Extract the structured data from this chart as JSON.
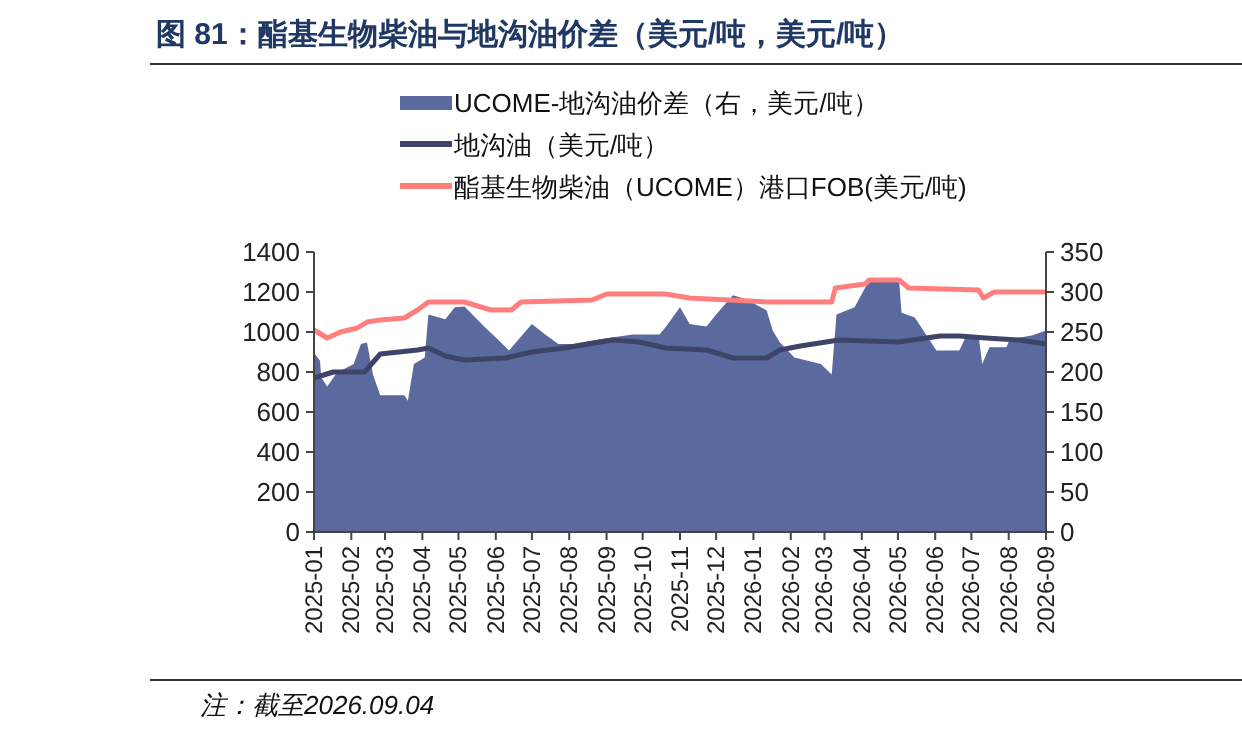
{
  "chart_data": {
    "type": "line",
    "title": "图 81：酯基生物柴油与地沟油价差（美元/吨，美元/吨）",
    "legend": "top",
    "grid": false,
    "xlim": [
      "2025-01-01",
      "2026-09-01"
    ],
    "xticks": [
      "2025-01",
      "2025-02",
      "2025-03",
      "2025-04",
      "2025-05",
      "2025-06",
      "2025-07",
      "2025-08",
      "2025-09",
      "2025-10",
      "2025-11",
      "2025-12",
      "2026-01",
      "2026-02",
      "2026-03",
      "2026-04",
      "2026-05",
      "2026-06",
      "2026-07",
      "2026-08",
      "2026-09"
    ],
    "ylim": [
      0,
      1400
    ],
    "yticks": [
      0,
      200,
      400,
      600,
      800,
      1000,
      1200,
      1400
    ],
    "y2lim": [
      0,
      350
    ],
    "y2ticks": [
      0,
      50,
      100,
      150,
      200,
      250,
      300,
      350
    ],
    "series": [
      {
        "name": "UCOME-地沟油价差（右，美元/吨）",
        "type": "area",
        "axis": "y2",
        "color": "#5b6a9e",
        "x": [
          "2025-01-01",
          "2025-01-06",
          "2025-01-07",
          "2025-01-12",
          "2025-01-20",
          "2025-02-03",
          "2025-02-09",
          "2025-02-14",
          "2025-02-19",
          "2025-02-25",
          "2025-03-17",
          "2025-03-20",
          "2025-03-25",
          "2025-04-03",
          "2025-04-06",
          "2025-04-20",
          "2025-04-28",
          "2025-05-06",
          "2025-05-23",
          "2025-06-01",
          "2025-06-12",
          "2025-06-20",
          "2025-07-01",
          "2025-07-12",
          "2025-07-23",
          "2025-08-04",
          "2025-08-26",
          "2025-09-23",
          "2025-10-15",
          "2025-10-20",
          "2025-11-01",
          "2025-11-09",
          "2025-11-23",
          "2025-12-01",
          "2025-12-15",
          "2025-12-26",
          "2026-01-12",
          "2026-01-17",
          "2026-01-23",
          "2026-02-04",
          "2026-02-26",
          "2026-03-07",
          "2026-03-11",
          "2026-03-26",
          "2026-04-07",
          "2026-05-02",
          "2026-05-04",
          "2026-05-15",
          "2026-06-02",
          "2026-06-21",
          "2026-06-27",
          "2026-07-07",
          "2026-07-10",
          "2026-07-16",
          "2026-07-30",
          "2026-08-02",
          "2026-08-21",
          "2026-09-01"
        ],
        "values": [
          224,
          214,
          193,
          182,
          199,
          210,
          235,
          237,
          197,
          171,
          171,
          164,
          210,
          218,
          272,
          266,
          281,
          282,
          256,
          243,
          227,
          241,
          260,
          247,
          235,
          235,
          241,
          247,
          247,
          256,
          281,
          260,
          257,
          272,
          296,
          291,
          277,
          252,
          237,
          218,
          210,
          197,
          272,
          281,
          314,
          314,
          274,
          268,
          227,
          227,
          246,
          246,
          210,
          231,
          231,
          241,
          246,
          252
        ]
      },
      {
        "name": "地沟油（美元/吨）",
        "color": "#3d4468",
        "x": [
          "2025-01-01",
          "2025-01-17",
          "2025-02-12",
          "2025-02-25",
          "2025-03-28",
          "2025-04-06",
          "2025-04-20",
          "2025-05-06",
          "2025-06-09",
          "2025-07-01",
          "2025-07-28",
          "2025-09-06",
          "2025-09-28",
          "2025-10-20",
          "2025-11-23",
          "2025-12-15",
          "2026-01-12",
          "2026-01-23",
          "2026-02-09",
          "2026-03-13",
          "2026-05-02",
          "2026-06-05",
          "2026-06-21",
          "2026-07-13",
          "2026-08-10",
          "2026-09-01"
        ],
        "values": [
          770,
          800,
          800,
          890,
          910,
          920,
          880,
          860,
          870,
          900,
          920,
          960,
          950,
          920,
          910,
          870,
          870,
          910,
          930,
          960,
          950,
          980,
          980,
          970,
          960,
          940
        ]
      },
      {
        "name": "酯基生物柴油（UCOME）港口FOB(美元/吨)",
        "color": "#ff7f7f",
        "x": [
          "2025-01-01",
          "2025-01-12",
          "2025-01-23",
          "2025-02-06",
          "2025-02-14",
          "2025-02-25",
          "2025-03-17",
          "2025-03-28",
          "2025-04-06",
          "2025-05-06",
          "2025-05-28",
          "2025-06-14",
          "2025-06-22",
          "2025-08-20",
          "2025-09-01",
          "2025-10-20",
          "2025-11-09",
          "2026-01-12",
          "2026-03-07",
          "2026-03-10",
          "2026-04-04",
          "2026-04-07",
          "2026-05-02",
          "2026-05-10",
          "2026-07-07",
          "2026-07-11",
          "2026-07-20",
          "2026-09-01"
        ],
        "values": [
          1010,
          970,
          1000,
          1020,
          1050,
          1060,
          1070,
          1110,
          1150,
          1150,
          1110,
          1110,
          1150,
          1160,
          1190,
          1190,
          1170,
          1150,
          1150,
          1220,
          1240,
          1260,
          1260,
          1220,
          1210,
          1170,
          1200,
          1200
        ]
      }
    ],
    "annotations": [
      "注：截至2026.09.04"
    ]
  }
}
